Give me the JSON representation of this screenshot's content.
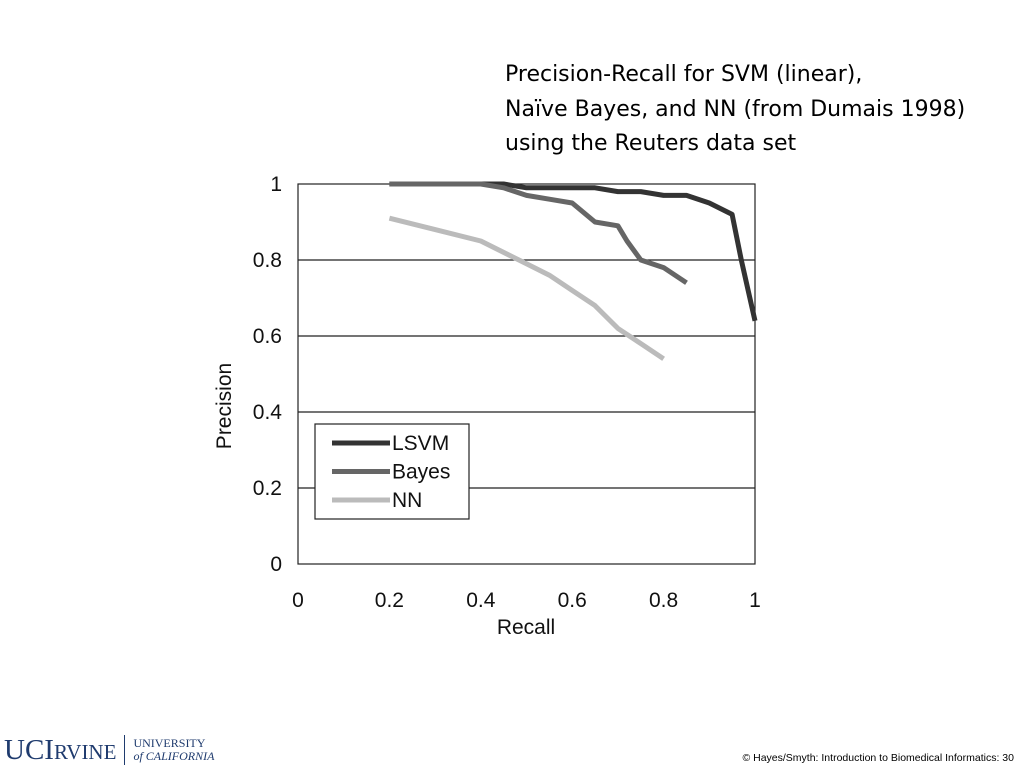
{
  "caption": {
    "line1": "Precision-Recall for SVM (linear),",
    "line2": "Naïve Bayes, and NN (from Dumais 1998)",
    "line3": "using the Reuters data set"
  },
  "chart_data": {
    "type": "line",
    "title": "",
    "xlabel": "Recall",
    "ylabel": "Precision",
    "xlim": [
      0,
      1
    ],
    "ylim": [
      0,
      1
    ],
    "xticks": [
      "0",
      "0.2",
      "0.4",
      "0.6",
      "0.8",
      "1"
    ],
    "yticks": [
      "0",
      "0.2",
      "0.4",
      "0.6",
      "0.8",
      "1"
    ],
    "grid": "horizontal",
    "legend_position": "bottom-left",
    "series": [
      {
        "name": "LSVM",
        "color": "#333333",
        "x": [
          0.2,
          0.3,
          0.4,
          0.45,
          0.5,
          0.55,
          0.6,
          0.65,
          0.7,
          0.75,
          0.8,
          0.85,
          0.9,
          0.95,
          0.97,
          1.0
        ],
        "y": [
          1.0,
          1.0,
          1.0,
          1.0,
          0.99,
          0.99,
          0.99,
          0.99,
          0.98,
          0.98,
          0.97,
          0.97,
          0.95,
          0.92,
          0.8,
          0.64
        ]
      },
      {
        "name": "Bayes",
        "color": "#666666",
        "x": [
          0.2,
          0.3,
          0.4,
          0.45,
          0.5,
          0.55,
          0.6,
          0.65,
          0.7,
          0.72,
          0.75,
          0.8,
          0.85
        ],
        "y": [
          1.0,
          1.0,
          1.0,
          0.99,
          0.97,
          0.96,
          0.95,
          0.9,
          0.89,
          0.85,
          0.8,
          0.78,
          0.74
        ]
      },
      {
        "name": "NN",
        "color": "#bbbbbb",
        "x": [
          0.2,
          0.3,
          0.4,
          0.45,
          0.5,
          0.55,
          0.6,
          0.65,
          0.7,
          0.75,
          0.8
        ],
        "y": [
          0.91,
          0.88,
          0.85,
          0.82,
          0.79,
          0.76,
          0.72,
          0.68,
          0.62,
          0.58,
          0.54
        ]
      }
    ]
  },
  "footer": {
    "logo_uci": "UCI",
    "logo_rvine": "RVINE",
    "logo_university": "UNIVERSITY",
    "logo_of_california": "of CALIFORNIA",
    "copyright": "© Hayes/Smyth: Introduction to Biomedical Informatics: 30"
  }
}
